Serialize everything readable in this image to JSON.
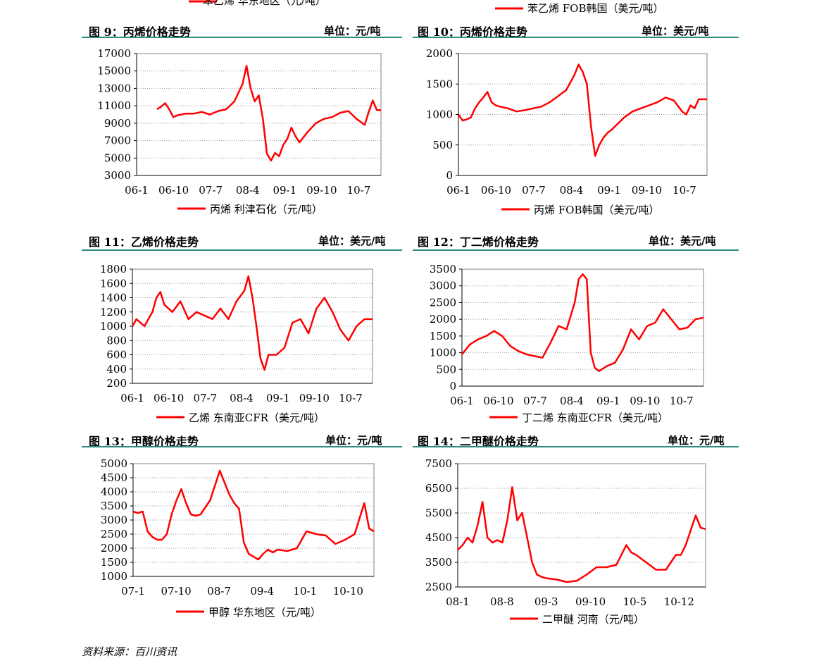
{
  "top_legends": [
    "苯乙烯 华东地区（元/吨）",
    "苯乙烯 FOB韩国（美元/吨）"
  ],
  "source": "资料来源：百川资讯",
  "line_color": "#ff0000",
  "chart_data": [
    {
      "type": "line",
      "title": "图 9：丙烯价格走势",
      "unit": "单位：元/吨",
      "legend": "丙烯 利津石化（元/吨）",
      "ylim": [
        3000,
        17000
      ],
      "yticks": [
        "17000",
        "15000",
        "13000",
        "11000",
        "9000",
        "7000",
        "5000",
        "3000"
      ],
      "xticks": [
        "06-1",
        "06-10",
        "07-7",
        "08-4",
        "09-1",
        "09-10",
        "10-7"
      ],
      "xlim": [
        0,
        60
      ],
      "x": [
        5,
        6,
        7,
        8,
        9,
        10,
        11,
        12,
        14,
        16,
        18,
        20,
        22,
        24,
        26,
        27,
        28,
        29,
        30,
        31,
        32,
        33,
        34,
        35,
        36,
        37,
        38,
        39,
        40,
        42,
        44,
        46,
        48,
        50,
        52,
        54,
        56,
        57,
        58,
        59,
        60
      ],
      "y": [
        10600,
        10900,
        11300,
        10600,
        9700,
        9900,
        10000,
        10100,
        10100,
        10300,
        10000,
        10400,
        10600,
        11500,
        13500,
        15600,
        13000,
        11500,
        12200,
        9500,
        5500,
        4700,
        5600,
        5200,
        6500,
        7200,
        8500,
        7500,
        6800,
        8000,
        9000,
        9500,
        9700,
        10200,
        10400,
        9500,
        8800,
        10300,
        11600,
        10500,
        10500
      ],
      "grid": true
    },
    {
      "type": "line",
      "title": "图 10：丙烯价格走势",
      "unit": "单位：美元/吨",
      "legend": "丙烯 FOB韩国（美元/吨）",
      "ylim": [
        0,
        2000
      ],
      "yticks": [
        "2000",
        "1500",
        "1000",
        "500",
        "0"
      ],
      "xticks": [
        "06-1",
        "06-10",
        "07-7",
        "08-4",
        "09-1",
        "09-10",
        "10-7"
      ],
      "xlim": [
        0,
        60
      ],
      "x": [
        0,
        1,
        2,
        3,
        4,
        5,
        6,
        7,
        8,
        9,
        10,
        12,
        14,
        16,
        18,
        20,
        22,
        24,
        26,
        28,
        29,
        30,
        31,
        32,
        33,
        34,
        35,
        36,
        37,
        38,
        40,
        42,
        44,
        46,
        48,
        50,
        52,
        54,
        55,
        56,
        57,
        58,
        60
      ],
      "y": [
        1000,
        900,
        920,
        950,
        1100,
        1200,
        1280,
        1370,
        1200,
        1150,
        1130,
        1100,
        1050,
        1070,
        1100,
        1130,
        1200,
        1300,
        1400,
        1650,
        1820,
        1700,
        1500,
        800,
        320,
        500,
        620,
        700,
        750,
        820,
        950,
        1050,
        1100,
        1150,
        1200,
        1280,
        1230,
        1050,
        1000,
        1150,
        1100,
        1250,
        1250
      ],
      "grid": true
    },
    {
      "type": "line",
      "title": "图 11：乙烯价格走势",
      "unit": "单位：美元/吨",
      "legend": "乙烯 东南亚CFR（美元/吨）",
      "ylim": [
        200,
        1800
      ],
      "yticks": [
        "1800",
        "1600",
        "1400",
        "1200",
        "1000",
        "800",
        "600",
        "400",
        "200"
      ],
      "xticks": [
        "06-1",
        "06-10",
        "07-7",
        "08-4",
        "09-1",
        "09-10",
        "10-7"
      ],
      "xlim": [
        0,
        60
      ],
      "x": [
        0,
        1,
        2,
        3,
        4,
        5,
        6,
        7,
        8,
        10,
        12,
        14,
        16,
        18,
        20,
        22,
        24,
        26,
        28,
        29,
        30,
        31,
        32,
        33,
        34,
        36,
        38,
        40,
        42,
        44,
        46,
        48,
        50,
        52,
        54,
        56,
        58,
        60
      ],
      "y": [
        1000,
        1100,
        1050,
        1000,
        1100,
        1200,
        1400,
        1480,
        1300,
        1200,
        1350,
        1100,
        1200,
        1150,
        1100,
        1250,
        1100,
        1350,
        1500,
        1700,
        1400,
        1000,
        550,
        390,
        600,
        600,
        700,
        1050,
        1100,
        900,
        1250,
        1400,
        1200,
        950,
        800,
        1000,
        1100,
        1100
      ],
      "grid": true
    },
    {
      "type": "line",
      "title": "图 12：丁二烯价格走势",
      "unit": "单位：美元/吨",
      "legend": "丁二烯 东南亚CFR（美元/吨）",
      "ylim": [
        0,
        3500
      ],
      "yticks": [
        "3500",
        "3000",
        "2500",
        "2000",
        "1500",
        "1000",
        "500",
        "0"
      ],
      "xticks": [
        "06-1",
        "06-10",
        "07-7",
        "08-4",
        "09-1",
        "09-10",
        "10-7"
      ],
      "xlim": [
        0,
        60
      ],
      "x": [
        0,
        2,
        4,
        6,
        8,
        10,
        12,
        14,
        16,
        18,
        20,
        22,
        24,
        26,
        28,
        29,
        30,
        31,
        32,
        33,
        34,
        36,
        38,
        40,
        42,
        44,
        46,
        48,
        50,
        52,
        54,
        56,
        58,
        60
      ],
      "y": [
        950,
        1250,
        1400,
        1500,
        1650,
        1500,
        1200,
        1050,
        950,
        900,
        850,
        1300,
        1800,
        1700,
        2500,
        3200,
        3350,
        3200,
        1000,
        550,
        450,
        600,
        700,
        1100,
        1700,
        1400,
        1800,
        1900,
        2300,
        2000,
        1700,
        1750,
        2000,
        2050
      ],
      "grid": true
    },
    {
      "type": "line",
      "title": "图 13：甲醇价格走势",
      "unit": "单位：元/吨",
      "legend": "甲醇 华东地区（元/吨）",
      "ylim": [
        1000,
        5000
      ],
      "yticks": [
        "5000",
        "4500",
        "4000",
        "3500",
        "3000",
        "2500",
        "2000",
        "1500",
        "1000"
      ],
      "xticks": [
        "07-1",
        "07-10",
        "08-7",
        "09-4",
        "10-1",
        "10-10"
      ],
      "xlim": [
        0,
        50
      ],
      "x": [
        0,
        1,
        2,
        3,
        4,
        5,
        6,
        7,
        8,
        9,
        10,
        11,
        12,
        13,
        14,
        16,
        18,
        20,
        21,
        22,
        23,
        24,
        25,
        26,
        27,
        28,
        29,
        30,
        32,
        34,
        36,
        38,
        40,
        42,
        44,
        46,
        48,
        49,
        50
      ],
      "y": [
        3300,
        3250,
        3300,
        2600,
        2400,
        2300,
        2300,
        2500,
        3200,
        3700,
        4100,
        3600,
        3200,
        3150,
        3200,
        3700,
        4750,
        3900,
        3600,
        3400,
        2200,
        1800,
        1700,
        1600,
        1800,
        1950,
        1850,
        1950,
        1900,
        2000,
        2600,
        2500,
        2450,
        2150,
        2300,
        2500,
        3600,
        2700,
        2600
      ],
      "grid": true
    },
    {
      "type": "line",
      "title": "图 14：二甲醚价格走势",
      "unit": "单位：元/吨",
      "legend": "二甲醚 河南（元/吨）",
      "ylim": [
        2500,
        7500
      ],
      "yticks": [
        "7500",
        "6500",
        "5500",
        "4500",
        "3500",
        "2500"
      ],
      "xticks": [
        "08-1",
        "08-8",
        "09-3",
        "09-10",
        "10-5",
        "10-12"
      ],
      "xlim": [
        0,
        50
      ],
      "x": [
        0,
        1,
        2,
        3,
        4,
        5,
        6,
        7,
        8,
        9,
        10,
        11,
        12,
        13,
        14,
        15,
        16,
        17,
        18,
        20,
        22,
        24,
        26,
        28,
        30,
        32,
        34,
        35,
        36,
        38,
        40,
        42,
        44,
        45,
        46,
        48,
        49,
        50
      ],
      "y": [
        4000,
        4200,
        4500,
        4300,
        5000,
        5950,
        4500,
        4300,
        4400,
        4300,
        5200,
        6550,
        5200,
        5500,
        4500,
        3500,
        3000,
        2900,
        2850,
        2800,
        2700,
        2750,
        3000,
        3300,
        3300,
        3400,
        4200,
        3900,
        3800,
        3500,
        3200,
        3200,
        3800,
        3800,
        4200,
        5400,
        4900,
        4850
      ],
      "grid": true
    }
  ]
}
